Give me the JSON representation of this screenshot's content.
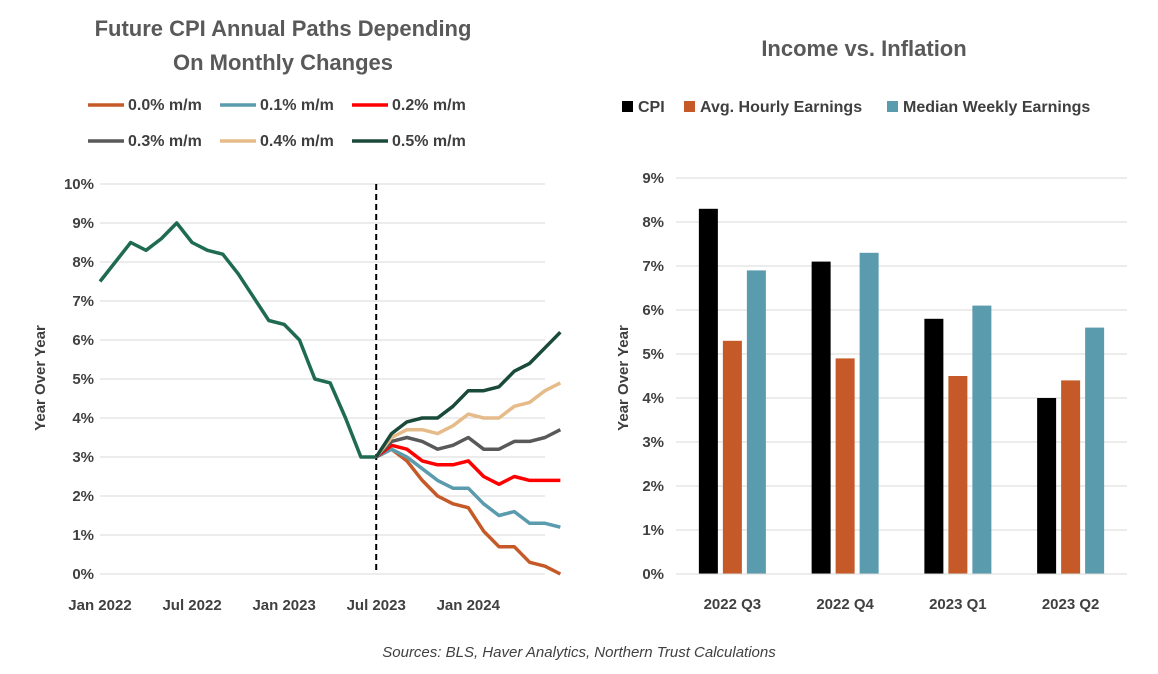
{
  "source": "Sources: BLS, Haver Analytics, Northern Trust Calculations",
  "chart_data": [
    {
      "type": "line",
      "title": [
        "Future CPI Annual Paths Depending",
        "On Monthly Changes"
      ],
      "xlabel": "",
      "ylabel": "Year Over Year",
      "ylim": [
        0,
        10
      ],
      "yticks": [
        "0%",
        "1%",
        "2%",
        "3%",
        "4%",
        "5%",
        "6%",
        "7%",
        "8%",
        "9%",
        "10%"
      ],
      "xticks": [
        {
          "month": 0,
          "label": "Jan 2022"
        },
        {
          "month": 6,
          "label": "Jul 2022"
        },
        {
          "month": 12,
          "label": "Jan 2023"
        },
        {
          "month": 18,
          "label": "Jul 2023"
        },
        {
          "month": 24,
          "label": "Jan 2024"
        }
      ],
      "x_start": "Jan 2022",
      "x_end_month": 28,
      "divider_month": 18,
      "grid": true,
      "legend_position": "top",
      "history": {
        "color": "#1e6b52",
        "months": [
          0,
          1,
          2,
          3,
          4,
          5,
          6,
          7,
          8,
          9,
          10,
          11,
          12,
          13,
          14,
          15,
          16,
          17,
          18
        ],
        "values": [
          7.5,
          8.0,
          8.5,
          8.3,
          8.6,
          9.0,
          8.5,
          8.3,
          8.2,
          7.7,
          7.1,
          6.5,
          6.4,
          6.0,
          5.0,
          4.9,
          4.0,
          3.0,
          3.0
        ]
      },
      "series": [
        {
          "name": "0.0% m/m",
          "color": "#c55a28",
          "values": [
            3.0,
            3.2,
            2.9,
            2.4,
            2.0,
            1.8,
            1.7,
            1.1,
            0.7,
            0.7,
            0.3,
            0.2,
            0.0
          ]
        },
        {
          "name": "0.1% m/m",
          "color": "#5b9bae",
          "values": [
            3.0,
            3.2,
            3.0,
            2.7,
            2.4,
            2.2,
            2.2,
            1.8,
            1.5,
            1.6,
            1.3,
            1.3,
            1.2
          ]
        },
        {
          "name": "0.2% m/m",
          "color": "#ff0000",
          "values": [
            3.0,
            3.3,
            3.2,
            2.9,
            2.8,
            2.8,
            2.9,
            2.5,
            2.3,
            2.5,
            2.4,
            2.4,
            2.4
          ]
        },
        {
          "name": "0.3% m/m",
          "color": "#595959",
          "values": [
            3.0,
            3.4,
            3.5,
            3.4,
            3.2,
            3.3,
            3.5,
            3.2,
            3.2,
            3.4,
            3.4,
            3.5,
            3.7
          ]
        },
        {
          "name": "0.4% m/m",
          "color": "#e6bb8a",
          "values": [
            3.0,
            3.5,
            3.7,
            3.7,
            3.6,
            3.8,
            4.1,
            4.0,
            4.0,
            4.3,
            4.4,
            4.7,
            4.9
          ]
        },
        {
          "name": "0.5% m/m",
          "color": "#1a4a3a",
          "values": [
            3.0,
            3.6,
            3.9,
            4.0,
            4.0,
            4.3,
            4.7,
            4.7,
            4.8,
            5.2,
            5.4,
            5.8,
            6.2
          ]
        }
      ]
    },
    {
      "type": "bar",
      "title": "Income vs. Inflation",
      "xlabel": "",
      "ylabel": "Year Over Year",
      "ylim": [
        0,
        9
      ],
      "yticks": [
        "0%",
        "1%",
        "2%",
        "3%",
        "4%",
        "5%",
        "6%",
        "7%",
        "8%",
        "9%"
      ],
      "grid": true,
      "legend_position": "top",
      "categories": [
        "2022 Q3",
        "2022 Q4",
        "2023 Q1",
        "2023 Q2"
      ],
      "series": [
        {
          "name": "CPI",
          "color": "#000000",
          "values": [
            8.3,
            7.1,
            5.8,
            4.0
          ]
        },
        {
          "name": "Avg. Hourly Earnings",
          "color": "#c55a28",
          "values": [
            5.3,
            4.9,
            4.5,
            4.4
          ]
        },
        {
          "name": "Median Weekly Earnings",
          "color": "#5b9bae",
          "values": [
            6.9,
            7.3,
            6.1,
            5.6
          ]
        }
      ]
    }
  ]
}
